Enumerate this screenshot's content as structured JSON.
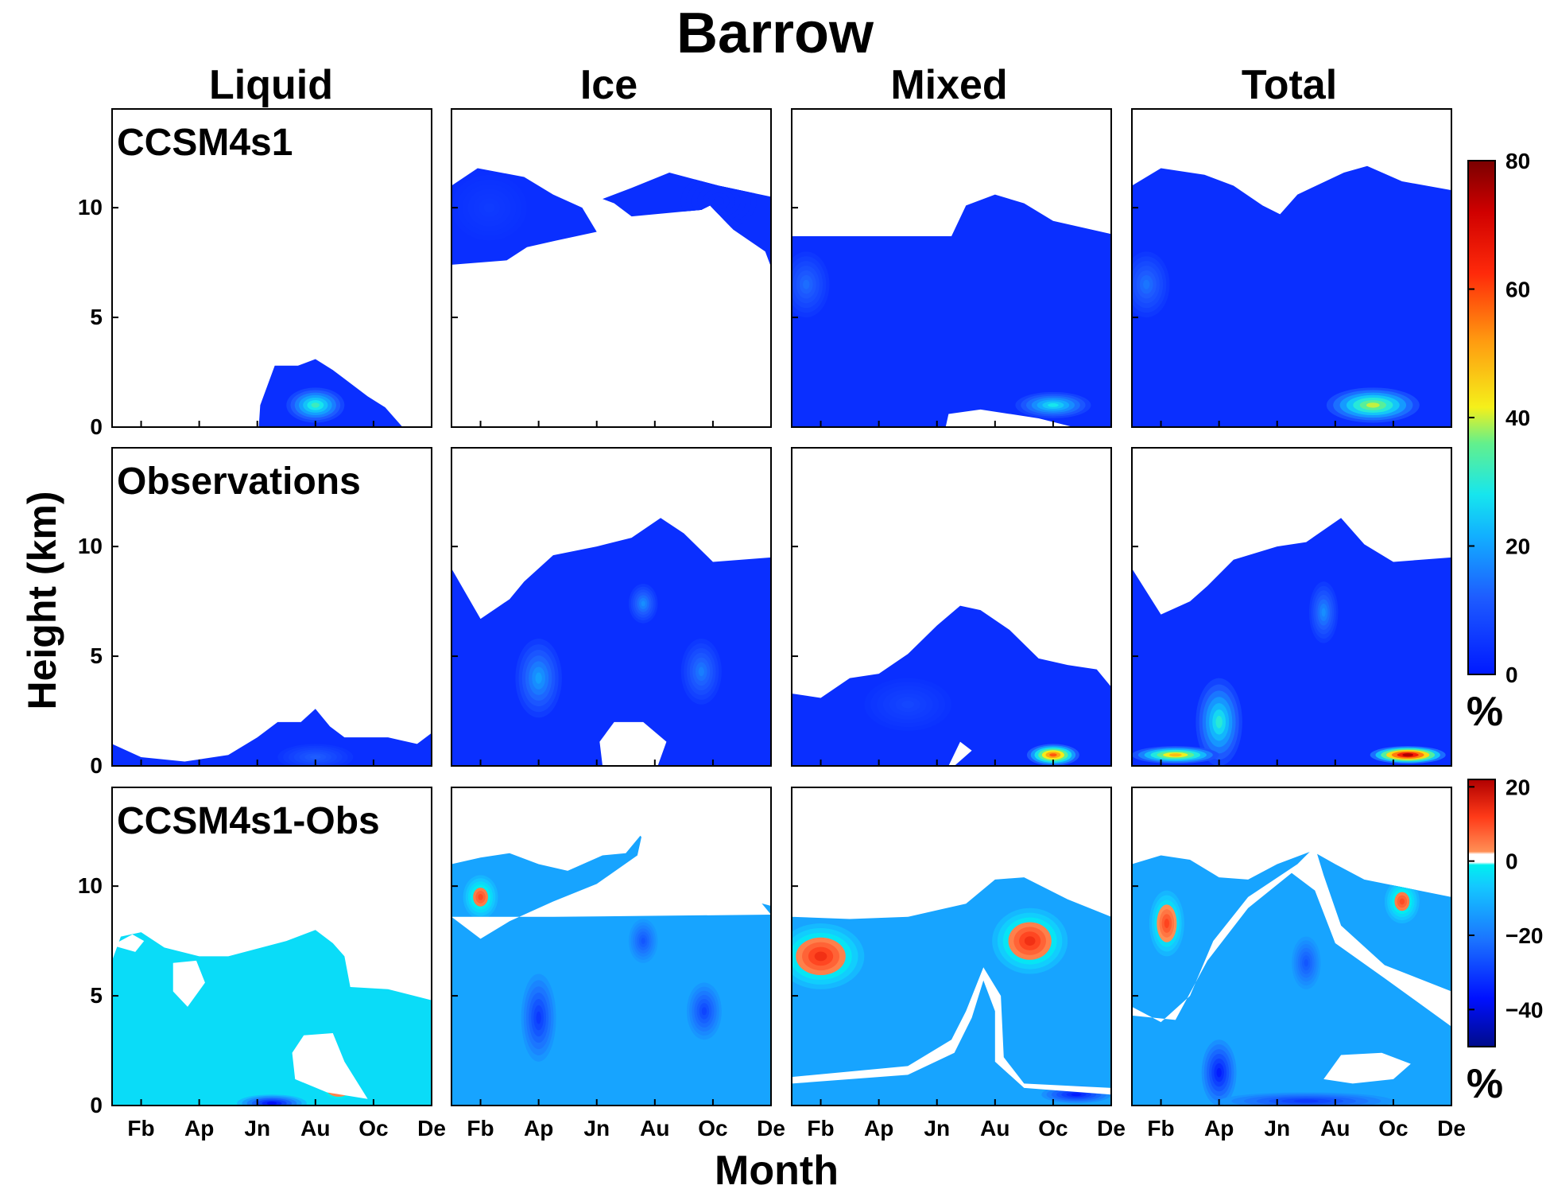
{
  "figure": {
    "title": "Barrow",
    "ylabel": "Height (km)",
    "xlabel": "Month",
    "column_titles": [
      "Liquid",
      "Ice",
      "Mixed",
      "Total"
    ],
    "row_labels": [
      "CCSM4s1",
      "Observations",
      "CCSM4s1-Obs"
    ]
  },
  "colorbars": [
    {
      "unit": "%",
      "ticks": [
        0,
        20,
        40,
        60,
        80
      ],
      "range": [
        0,
        80
      ]
    },
    {
      "unit": "%",
      "ticks": [
        20,
        0,
        -20,
        -40
      ],
      "range": [
        -50,
        22
      ]
    }
  ],
  "chart_data": {
    "type": "heatmap",
    "x_tick_labels": [
      "Fb",
      "Ap",
      "Jn",
      "Au",
      "Oc",
      "De"
    ],
    "x_tick_months": [
      2,
      4,
      6,
      8,
      10,
      12
    ],
    "xlim": [
      1,
      12
    ],
    "y_ticks": [
      0,
      5,
      10
    ],
    "ylim": [
      0,
      14.5
    ],
    "ylabel": "Height (km)",
    "xlabel": "Month",
    "panels": [
      {
        "row": "CCSM4s1",
        "column": "Liquid",
        "blobs": [
          [
            8,
            1.0,
            1.0,
            0.8,
            32
          ]
        ]
      },
      {
        "row": "CCSM4s1",
        "column": "Ice",
        "blobs": [
          [
            2.3,
            10.0,
            1.3,
            1.5,
            6
          ],
          [
            10.2,
            10.3,
            1.3,
            1.3,
            4
          ]
        ]
      },
      {
        "row": "CCSM4s1",
        "column": "Mixed",
        "blobs": [
          [
            10,
            1.0,
            1.3,
            0.6,
            28
          ],
          [
            1.5,
            6.5,
            0.8,
            1.5,
            14
          ]
        ]
      },
      {
        "row": "CCSM4s1",
        "column": "Total",
        "blobs": [
          [
            9.3,
            1.0,
            1.6,
            0.8,
            40
          ],
          [
            1.5,
            6.5,
            0.8,
            1.5,
            15
          ]
        ]
      },
      {
        "row": "Observations",
        "column": "Liquid",
        "blobs": [
          [
            8,
            0.4,
            1.3,
            0.6,
            12
          ]
        ]
      },
      {
        "row": "Observations",
        "column": "Ice",
        "blobs": [
          [
            4,
            4.0,
            0.8,
            1.8,
            20
          ],
          [
            7.6,
            7.4,
            0.5,
            0.9,
            18
          ],
          [
            9.6,
            4.3,
            0.7,
            1.5,
            16
          ]
        ]
      },
      {
        "row": "Observations",
        "column": "Mixed",
        "blobs": [
          [
            10,
            0.5,
            0.9,
            0.5,
            58
          ],
          [
            5,
            2.8,
            1.5,
            1.2,
            8
          ]
        ]
      },
      {
        "row": "Observations",
        "column": "Total",
        "blobs": [
          [
            4,
            2.0,
            0.8,
            2.0,
            30
          ],
          [
            10.5,
            0.5,
            1.3,
            0.4,
            75
          ],
          [
            7.6,
            7.0,
            0.5,
            1.4,
            18
          ],
          [
            2.5,
            0.5,
            1.5,
            0.4,
            48
          ]
        ]
      },
      {
        "row": "CCSM4s1-Obs",
        "column": "Liquid",
        "blobs": [
          [
            8.8,
            1.0,
            0.6,
            0.7,
            12
          ],
          [
            6.5,
            0.1,
            1.2,
            0.4,
            -38
          ]
        ]
      },
      {
        "row": "CCSM4s1-Obs",
        "column": "Ice",
        "blobs": [
          [
            2.0,
            9.5,
            0.6,
            1.0,
            8
          ],
          [
            11,
            10.2,
            0.7,
            0.6,
            6
          ],
          [
            4.0,
            4.0,
            0.6,
            2.0,
            -30
          ],
          [
            7.6,
            7.5,
            0.5,
            1.0,
            -25
          ],
          [
            9.7,
            4.3,
            0.6,
            1.3,
            -28
          ]
        ]
      },
      {
        "row": "CCSM4s1-Obs",
        "column": "Mixed",
        "blobs": [
          [
            2.0,
            6.8,
            1.5,
            1.5,
            12
          ],
          [
            9.2,
            7.5,
            1.3,
            1.5,
            12
          ],
          [
            10.8,
            0.5,
            1.2,
            0.4,
            -35
          ]
        ]
      },
      {
        "row": "CCSM4s1-Obs",
        "column": "Total",
        "blobs": [
          [
            2.2,
            8.3,
            0.6,
            1.5,
            9
          ],
          [
            10.3,
            9.3,
            0.6,
            1.0,
            8
          ],
          [
            4.0,
            1.5,
            0.6,
            1.5,
            -35
          ],
          [
            7.0,
            6.5,
            0.5,
            1.2,
            -25
          ],
          [
            7.0,
            0.2,
            3.0,
            0.4,
            -30
          ]
        ]
      }
    ]
  }
}
